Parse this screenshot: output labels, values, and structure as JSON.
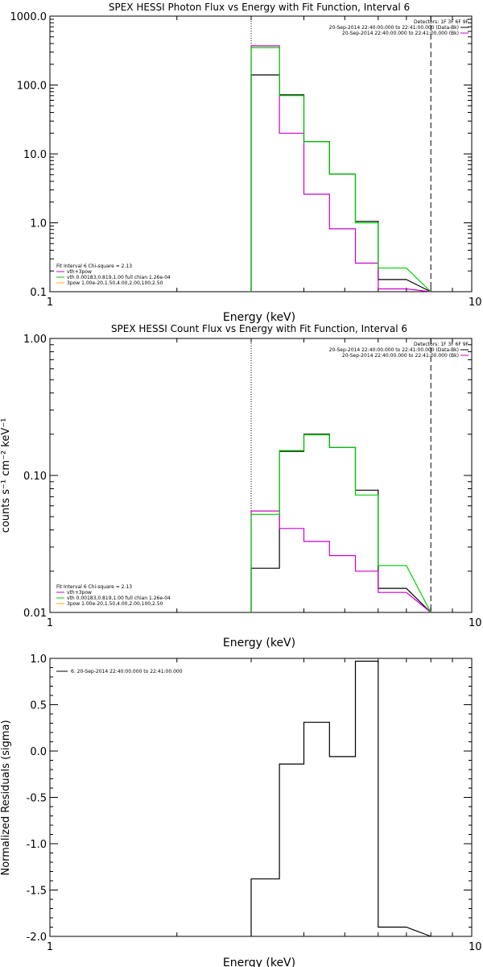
{
  "chart_data": [
    {
      "type": "line",
      "title": "SPEX HESSI Photon Flux vs Energy with Fit Function, Interval 6",
      "xlabel": "Energy (keV)",
      "ylabel": "",
      "xscale": "log",
      "yscale": "log",
      "xlim": [
        1,
        10
      ],
      "ylim": [
        0.1,
        1000
      ],
      "xticks": [
        "1",
        "10"
      ],
      "yticks": [
        {
          "value": 1000,
          "label": "1000.0"
        },
        {
          "value": 100,
          "label": "100.0"
        },
        {
          "value": 10,
          "label": "10.0"
        },
        {
          "value": 1,
          "label": "1.0"
        },
        {
          "value": 0.1,
          "label": "0.1"
        }
      ],
      "edges": [
        3.0,
        3.5,
        4.0,
        4.6,
        5.3,
        6.0,
        7.0,
        8.0
      ],
      "vlines": [
        {
          "x": 3.0,
          "style": "dotted"
        },
        {
          "x": 8.0,
          "style": "dashed"
        }
      ],
      "legend_topright": [
        {
          "text": "Detectors: 1F 3F 6F 9F",
          "color": ""
        },
        {
          "text": "20-Sep-2014 22:40:00.000 to 22:41:00.000 (Data-Bk)",
          "color": "#000000"
        },
        {
          "text": "20-Sep-2014 22:40:00.000 to 22:41:00.000 (Bk)",
          "color": "#cc00cc"
        }
      ],
      "legend_bottomleft": [
        {
          "text": "Fit Interval 6   Chi-square = 2.13",
          "color": ""
        },
        {
          "text": "vth+3pow",
          "color": "#cc00cc"
        },
        {
          "text": "vth 0.00183,0.819,1.00  full chian 1.26e-04",
          "color": "#00cc00"
        },
        {
          "text": "3pow 1.00e-20,1.50,4.00,2.00,100,2.50",
          "color": "#ffaa00"
        }
      ],
      "series": [
        {
          "color": "#000000",
          "values": [
            140,
            72,
            15,
            5.1,
            1.05,
            0.15
          ]
        },
        {
          "color": "#cc00cc",
          "values": [
            370,
            20,
            2.6,
            0.82,
            0.26,
            0.11
          ]
        },
        {
          "color": "#00cc00",
          "values": [
            350,
            70,
            15,
            5.1,
            1.0,
            0.22
          ]
        }
      ]
    },
    {
      "type": "line",
      "title": "SPEX HESSI Count Flux vs Energy with Fit Function, Interval 6",
      "xlabel": "Energy (keV)",
      "ylabel": "counts s⁻¹ cm⁻² keV⁻¹",
      "xscale": "log",
      "yscale": "log",
      "xlim": [
        1,
        10
      ],
      "ylim": [
        0.01,
        1
      ],
      "xticks": [
        "1",
        "10"
      ],
      "yticks": [
        {
          "value": 1,
          "label": "1.00"
        },
        {
          "value": 0.1,
          "label": "0.10"
        },
        {
          "value": 0.01,
          "label": "0.01"
        }
      ],
      "edges": [
        3.0,
        3.5,
        4.0,
        4.6,
        5.3,
        6.0,
        7.0,
        8.0
      ],
      "vlines": [
        {
          "x": 3.0,
          "style": "dotted"
        },
        {
          "x": 8.0,
          "style": "dashed"
        }
      ],
      "legend_topright": [
        {
          "text": "Detectors: 1F 3F 6F 9F",
          "color": ""
        },
        {
          "text": "20-Sep-2014 22:40:00.000 to 22:41:00.000 (Data-Bk)",
          "color": "#000000"
        },
        {
          "text": "20-Sep-2014 22:40:00.000 to 22:41:00.000 (Bk)",
          "color": "#cc00cc"
        }
      ],
      "legend_bottomleft": [
        {
          "text": "Fit Interval 6   Chi-square = 2.13",
          "color": ""
        },
        {
          "text": "vth+3pow",
          "color": "#cc00cc"
        },
        {
          "text": "vth 0.00183,0.819,1.00  full chian 1.26e-04",
          "color": "#00cc00"
        },
        {
          "text": "3pow 1.00e-20,1.50,4.00,2.00,100,2.50",
          "color": "#ffaa00"
        }
      ],
      "series": [
        {
          "color": "#000000",
          "values": [
            0.021,
            0.15,
            0.2,
            0.16,
            0.078,
            0.015
          ]
        },
        {
          "color": "#cc00cc",
          "values": [
            0.055,
            0.041,
            0.033,
            0.026,
            0.02,
            0.014
          ]
        },
        {
          "color": "#00cc00",
          "values": [
            0.052,
            0.152,
            0.198,
            0.16,
            0.072,
            0.022
          ]
        }
      ]
    },
    {
      "type": "line",
      "title": "",
      "xlabel": "Energy (keV)",
      "ylabel": "Normalized Residuals (sigma)",
      "xscale": "log",
      "yscale": "linear",
      "xlim": [
        1,
        10
      ],
      "ylim": [
        -2.0,
        1.0
      ],
      "xticks": [
        "1",
        "10"
      ],
      "yticks": [
        {
          "value": 1.0,
          "label": "1.0"
        },
        {
          "value": 0.5,
          "label": "0.5"
        },
        {
          "value": 0.0,
          "label": "0.0"
        },
        {
          "value": -0.5,
          "label": "-0.5"
        },
        {
          "value": -1.0,
          "label": "-1.0"
        },
        {
          "value": -1.5,
          "label": "-1.5"
        },
        {
          "value": -2.0,
          "label": "-2.0"
        }
      ],
      "edges": [
        3.0,
        3.5,
        4.0,
        4.6,
        5.3,
        6.0,
        7.0,
        8.0
      ],
      "vlines": [],
      "legend_topright": [],
      "legend_topleft": [
        {
          "text": "6. 20-Sep-2014 22:40:00.000 to 22:41:00.000",
          "color": "#000000"
        }
      ],
      "legend_bottomleft": [],
      "series": [
        {
          "color": "#000000",
          "values": [
            -1.38,
            -0.14,
            0.31,
            -0.06,
            0.97,
            -1.9
          ]
        }
      ]
    }
  ]
}
